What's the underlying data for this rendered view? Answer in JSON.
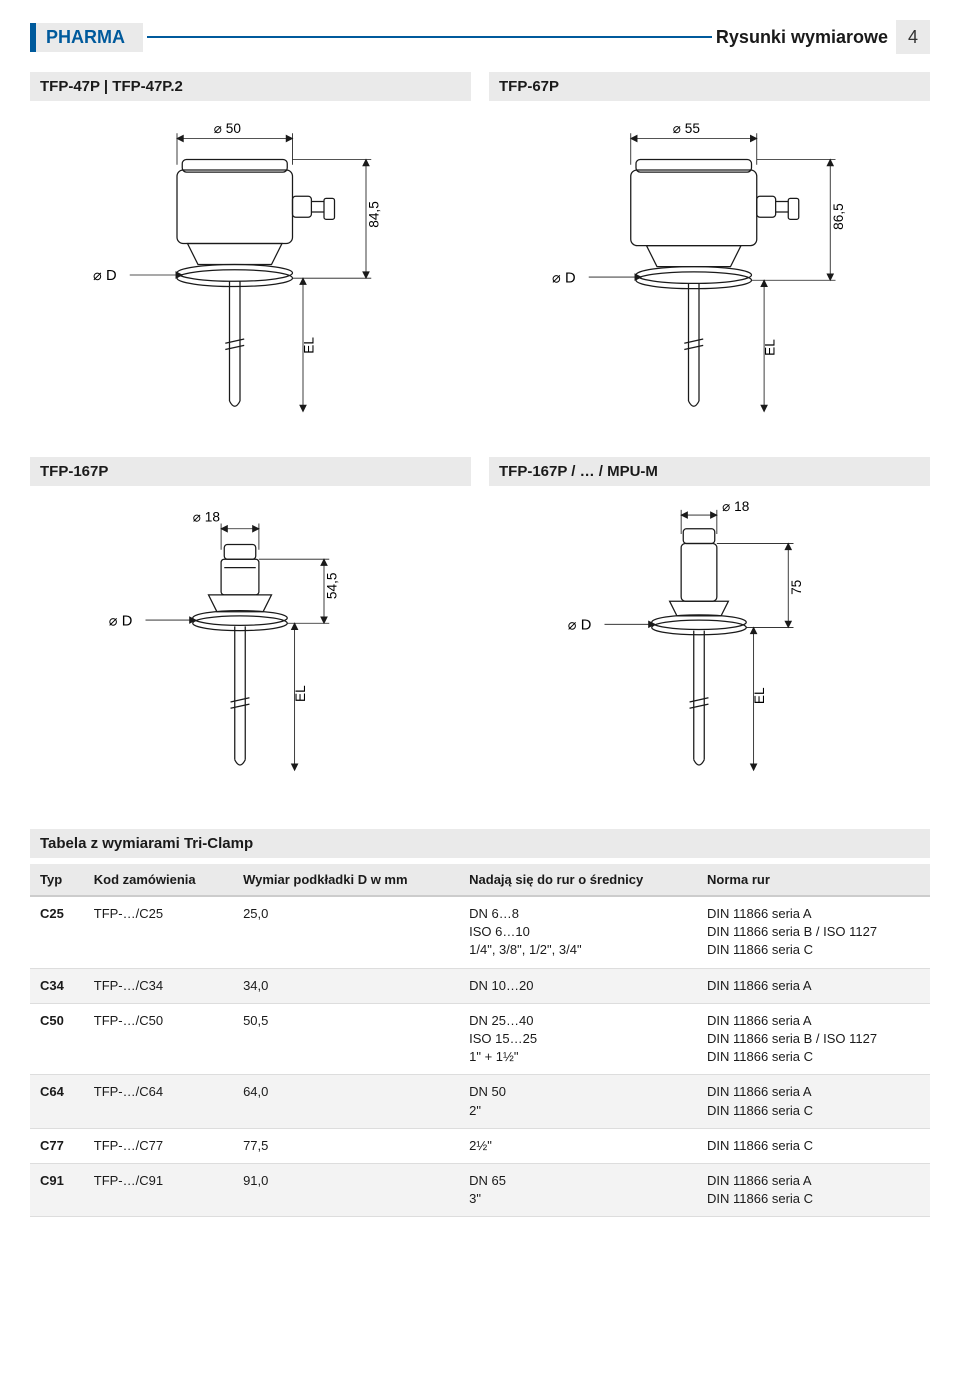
{
  "header": {
    "left_tab": "PHARMA",
    "right_title": "Rysunki wymiarowe",
    "page_number": "4",
    "accent_color": "#005a9c",
    "tab_bg": "#eaeaea"
  },
  "figures": [
    {
      "title": "TFP-47P | TFP-47P.2",
      "type": "sensor-drawing",
      "top_dim": "50",
      "height_dim": "84,5",
      "d_label": "D",
      "el_label": "EL",
      "diameter_symbol": "⌀",
      "variant": "large"
    },
    {
      "title": "TFP-67P",
      "type": "sensor-drawing",
      "top_dim": "55",
      "height_dim": "86,5",
      "d_label": "D",
      "el_label": "EL",
      "diameter_symbol": "⌀",
      "variant": "large"
    },
    {
      "title": "TFP-167P",
      "type": "sensor-drawing",
      "top_dim": "18",
      "height_dim": "54,5",
      "d_label": "D",
      "el_label": "EL",
      "diameter_symbol": "⌀",
      "variant": "small"
    },
    {
      "title": "TFP-167P / … / MPU-M",
      "type": "sensor-drawing",
      "top_dim": "18",
      "height_dim": "75",
      "d_label": "D",
      "el_label": "EL",
      "diameter_symbol": "⌀",
      "variant": "small"
    }
  ],
  "table": {
    "title": "Tabela z wymiarami Tri-Clamp",
    "columns": [
      "Typ",
      "Kod zamówienia",
      "Wymiar podkładki D w mm",
      "Nadają się do rur o średnicy",
      "Norma rur"
    ],
    "rows": [
      {
        "shade": false,
        "cells": [
          "C25",
          "TFP-…/C25",
          "25,0",
          "DN 6…8\nISO 6…10\n1/4\", 3/8\", 1/2\", 3/4\"",
          "DIN 11866 seria A\nDIN 11866 seria B / ISO 1127\nDIN 11866 seria C"
        ]
      },
      {
        "shade": true,
        "cells": [
          "C34",
          "TFP-…/C34",
          "34,0",
          "DN 10…20",
          "DIN 11866 seria A"
        ]
      },
      {
        "shade": false,
        "cells": [
          "C50",
          "TFP-…/C50",
          "50,5",
          "DN 25…40\nISO 15…25\n1\" + 1½\"",
          "DIN 11866 seria A\nDIN 11866 seria B / ISO 1127\nDIN 11866 seria C"
        ]
      },
      {
        "shade": true,
        "cells": [
          "C64",
          "TFP-…/C64",
          "64,0",
          "DN 50\n2\"",
          "DIN 11866 seria A\nDIN 11866 seria C"
        ]
      },
      {
        "shade": false,
        "cells": [
          "C77",
          "TFP-…/C77",
          "77,5",
          "2½\"",
          "DIN 11866 seria C"
        ]
      },
      {
        "shade": true,
        "cells": [
          "C91",
          "TFP-…/C91",
          "91,0",
          "DN 65\n3\"",
          "DIN 11866 seria A\nDIN 11866 seria C"
        ]
      }
    ]
  },
  "svg_style": {
    "stroke": "#1a1a1a",
    "stroke_width": 1.2,
    "dim_stroke": "#1a1a1a",
    "dim_stroke_width": 0.8,
    "font_size": 12
  }
}
